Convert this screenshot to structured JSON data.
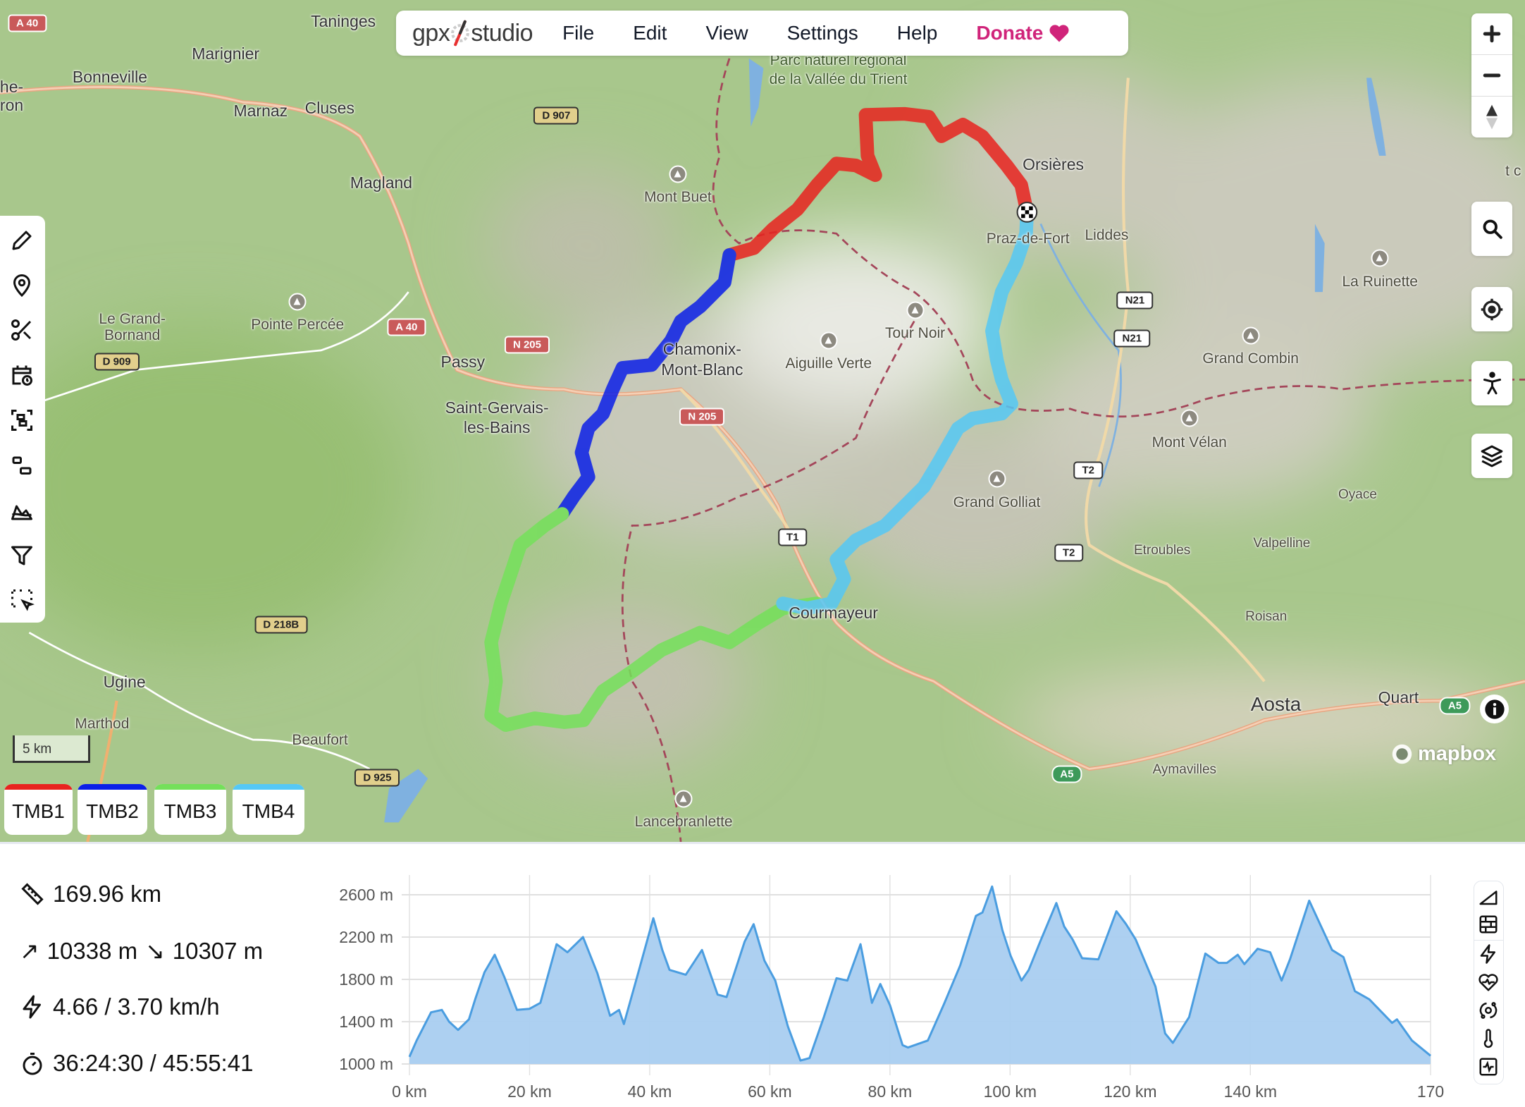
{
  "app": {
    "logo_left": "gpx",
    "logo_right": "studio"
  },
  "menu": {
    "file": "File",
    "edit": "Edit",
    "view": "View",
    "settings": "Settings",
    "help": "Help",
    "donate": "Donate"
  },
  "colors": {
    "donate": "#d0247a",
    "profile_line": "#4a9de0",
    "profile_fill": "#a9cdf0"
  },
  "map": {
    "labels": [
      "Taninges",
      "Marignier",
      "Bonneville",
      "Marnaz",
      "Cluses",
      "Magland",
      "he-",
      "ron",
      "Parc naturel régional",
      "de la Vallée du Trient",
      "Mont Buet",
      "Orsières",
      "Praz-de-Fort",
      "Liddes",
      "La Ruinette",
      "Le Grand-",
      "Bornand",
      "Pointe Percée",
      "Passy",
      "Chamonix-",
      "Mont-Blanc",
      "Tour Noir",
      "Aiguille Verte",
      "Grand Combin",
      "Saint-Gervais-",
      "les-Bains",
      "Mont Vélan",
      "Grand Golliat",
      "Oyace",
      "Valpelline",
      "Etroubles",
      "Courmayeur",
      "Roisan",
      "Ugine",
      "Marthod",
      "Beaufort",
      "Aosta",
      "Quart",
      "Aymavilles",
      "Lancebranlette",
      "t c"
    ],
    "shields": [
      "A 40",
      "D 907",
      "A 40",
      "N 205",
      "D 909",
      "N 205",
      "N21",
      "N21",
      "T2",
      "T1",
      "T2",
      "D 218B",
      "D 925",
      "A5",
      "A5"
    ],
    "scale": "5 km",
    "attribution": "mapbox"
  },
  "tracks": [
    {
      "name": "TMB1",
      "color": "#e8231f"
    },
    {
      "name": "TMB2",
      "color": "#0a1fe8"
    },
    {
      "name": "TMB3",
      "color": "#74e05a"
    },
    {
      "name": "TMB4",
      "color": "#55c8f5"
    }
  ],
  "stats": {
    "distance": "169.96 km",
    "ascent": "10338 m",
    "descent": "10307 m",
    "speed": "4.66 / 3.70 km/h",
    "time": "36:24:30 / 45:55:41"
  },
  "chart_data": {
    "type": "area",
    "xlabel": "",
    "ylabel": "",
    "x_unit": "km",
    "y_unit": "m",
    "xlim": [
      0,
      170
    ],
    "ylim": [
      1000,
      2700
    ],
    "grid": true,
    "x_ticks": [
      "0 km",
      "20 km",
      "40 km",
      "60 km",
      "80 km",
      "100 km",
      "120 km",
      "140 km",
      "170"
    ],
    "x_tick_values": [
      0,
      20,
      40,
      60,
      80,
      100,
      120,
      140,
      170
    ],
    "y_ticks": [
      "2600 m",
      "2200 m",
      "1800 m",
      "1400 m",
      "1000 m"
    ],
    "y_tick_values": [
      2600,
      2200,
      1800,
      1400,
      1000
    ],
    "points": [
      [
        0,
        1067
      ],
      [
        1.2,
        1222
      ],
      [
        3.6,
        1489
      ],
      [
        5.4,
        1511
      ],
      [
        6.6,
        1400
      ],
      [
        8.1,
        1322
      ],
      [
        9.9,
        1422
      ],
      [
        11,
        1622
      ],
      [
        12.5,
        1867
      ],
      [
        14.2,
        2033
      ],
      [
        15.8,
        1822
      ],
      [
        17.9,
        1511
      ],
      [
        20,
        1522
      ],
      [
        21.8,
        1578
      ],
      [
        24.5,
        2133
      ],
      [
        26.3,
        2056
      ],
      [
        28.9,
        2200
      ],
      [
        31.3,
        1856
      ],
      [
        33.4,
        1456
      ],
      [
        34.9,
        1511
      ],
      [
        35.7,
        1378
      ],
      [
        37.9,
        1822
      ],
      [
        40.6,
        2378
      ],
      [
        42.1,
        2078
      ],
      [
        43.3,
        1889
      ],
      [
        46,
        1844
      ],
      [
        48.7,
        2078
      ],
      [
        51.3,
        1656
      ],
      [
        52.8,
        1633
      ],
      [
        55.8,
        2156
      ],
      [
        57.3,
        2322
      ],
      [
        59.1,
        1978
      ],
      [
        60.9,
        1789
      ],
      [
        63,
        1356
      ],
      [
        65.1,
        1033
      ],
      [
        66.6,
        1056
      ],
      [
        69,
        1444
      ],
      [
        71.1,
        1811
      ],
      [
        72.9,
        1789
      ],
      [
        75.1,
        2133
      ],
      [
        77,
        1578
      ],
      [
        78.4,
        1756
      ],
      [
        80,
        1556
      ],
      [
        82.1,
        1178
      ],
      [
        83,
        1156
      ],
      [
        86.3,
        1222
      ],
      [
        89,
        1567
      ],
      [
        91.7,
        1933
      ],
      [
        94.3,
        2400
      ],
      [
        95.4,
        2433
      ],
      [
        97,
        2678
      ],
      [
        98.7,
        2267
      ],
      [
        100.1,
        2022
      ],
      [
        101.9,
        1789
      ],
      [
        103.1,
        1889
      ],
      [
        105,
        2156
      ],
      [
        107.7,
        2522
      ],
      [
        109,
        2300
      ],
      [
        110.4,
        2178
      ],
      [
        112,
        2000
      ],
      [
        114.7,
        1989
      ],
      [
        117.7,
        2444
      ],
      [
        119.3,
        2322
      ],
      [
        120.9,
        2178
      ],
      [
        124.2,
        1733
      ],
      [
        125.8,
        1289
      ],
      [
        127.1,
        1200
      ],
      [
        129.8,
        1444
      ],
      [
        132.5,
        2044
      ],
      [
        134.7,
        1956
      ],
      [
        136.1,
        1956
      ],
      [
        137.9,
        2033
      ],
      [
        139,
        1944
      ],
      [
        141.2,
        2089
      ],
      [
        143.3,
        2056
      ],
      [
        145.2,
        1789
      ],
      [
        146.6,
        1989
      ],
      [
        149.8,
        2544
      ],
      [
        151.7,
        2311
      ],
      [
        153.6,
        2078
      ],
      [
        155.5,
        2011
      ],
      [
        157.4,
        1689
      ],
      [
        159.8,
        1611
      ],
      [
        163.6,
        1389
      ],
      [
        164.4,
        1422
      ],
      [
        166.9,
        1222
      ],
      [
        170,
        1078
      ]
    ]
  }
}
